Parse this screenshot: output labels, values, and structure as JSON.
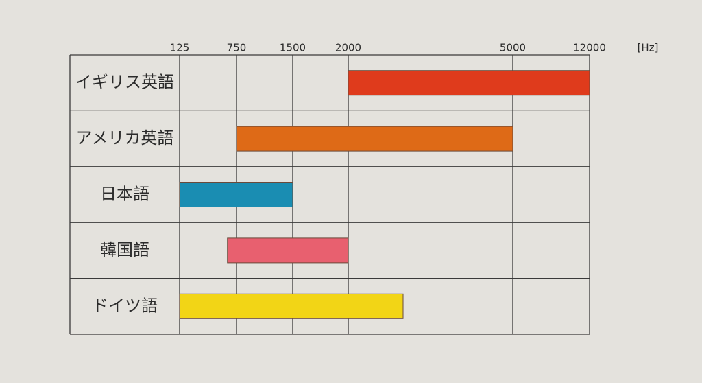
{
  "chart_data": {
    "type": "bar",
    "x_label": "[Hz]",
    "categories": [
      "イギリス英語",
      "アメリカ英語",
      "日本語",
      "韓国語",
      "ドイツ語"
    ],
    "start": [
      2000,
      750,
      125,
      650,
      125
    ],
    "end": [
      12000,
      5000,
      1500,
      2000,
      3000
    ],
    "colors": [
      "#df3b1c",
      "#de6a17",
      "#1a8db2",
      "#e8606f",
      "#f2d516"
    ],
    "xlim": [
      125,
      12000
    ],
    "xticks": [
      125,
      750,
      1500,
      2000,
      5000,
      12000
    ],
    "grid": true
  }
}
